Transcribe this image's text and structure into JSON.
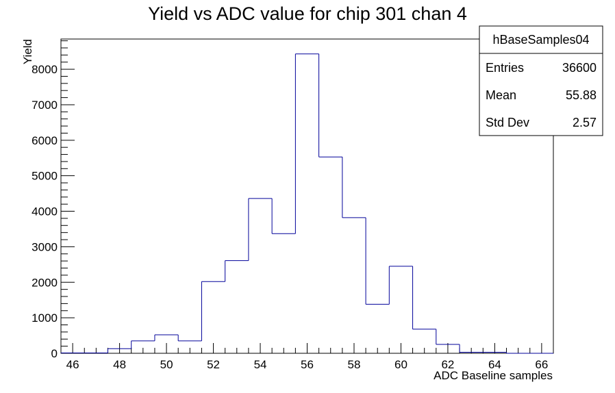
{
  "chart_data": {
    "type": "bar",
    "style": "step-histogram",
    "title": "Yield vs ADC value for chip 301 chan 4",
    "xlabel": "ADC Baseline samples",
    "ylabel": "Yield",
    "xlim": [
      45.5,
      66.5
    ],
    "ylim": [
      0,
      8850
    ],
    "x_ticks": [
      46,
      48,
      50,
      52,
      54,
      56,
      58,
      60,
      62,
      64,
      66
    ],
    "y_ticks": [
      0,
      1000,
      2000,
      3000,
      4000,
      5000,
      6000,
      7000,
      8000
    ],
    "bin_width": 1,
    "x": [
      46,
      47,
      48,
      49,
      50,
      51,
      52,
      53,
      54,
      55,
      56,
      57,
      58,
      59,
      60,
      61,
      62,
      63,
      64,
      65,
      66
    ],
    "values": [
      10,
      10,
      130,
      350,
      520,
      350,
      2020,
      2610,
      4360,
      3370,
      8430,
      5530,
      3820,
      1380,
      2450,
      680,
      250,
      30,
      30,
      0,
      0
    ],
    "line_color": "#000099",
    "grid": false,
    "stats_box": {
      "name": "hBaseSamples04",
      "rows": [
        {
          "label": "Entries",
          "value": "36600"
        },
        {
          "label": "Mean",
          "value": "55.88"
        },
        {
          "label": "Std Dev",
          "value": "2.57"
        }
      ]
    }
  }
}
